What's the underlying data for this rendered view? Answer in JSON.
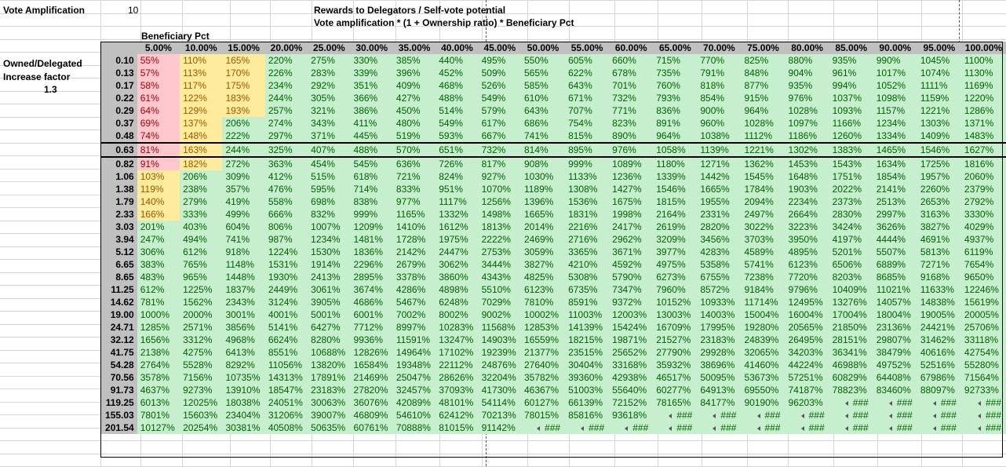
{
  "header": {
    "vote_amp_label": "Vote Amplification",
    "vote_amp_value": "10",
    "title_line1": "Rewards to Delegators / Self-vote potential",
    "title_line2": "Vote amplification * (1 + Ownership ratio) * Beneficiary Pct",
    "beneficiary_label": "Beneficiary Pct",
    "owned_label": "Owned/Delegated",
    "increase_label": "Increase factor",
    "increase_value": "1.3"
  },
  "table": {
    "columns": [
      "5.00%",
      "10.00%",
      "15.00%",
      "20.00%",
      "25.00%",
      "30.00%",
      "35.00%",
      "40.00%",
      "45.00%",
      "50.00%",
      "55.00%",
      "60.00%",
      "65.00%",
      "70.00%",
      "75.00%",
      "80.00%",
      "85.00%",
      "90.00%",
      "95.00%",
      "100.00%"
    ],
    "selected_row": 7,
    "rows": [
      {
        "label": "0.10",
        "cells": [
          "55%",
          "110%",
          "165%",
          "220%",
          "275%",
          "330%",
          "385%",
          "440%",
          "495%",
          "550%",
          "605%",
          "660%",
          "715%",
          "770%",
          "825%",
          "880%",
          "935%",
          "990%",
          "1045%",
          "1100%"
        ]
      },
      {
        "label": "0.13",
        "cells": [
          "57%",
          "113%",
          "170%",
          "226%",
          "283%",
          "339%",
          "396%",
          "452%",
          "509%",
          "565%",
          "622%",
          "678%",
          "735%",
          "791%",
          "848%",
          "904%",
          "961%",
          "1017%",
          "1074%",
          "1130%"
        ]
      },
      {
        "label": "0.17",
        "cells": [
          "58%",
          "117%",
          "175%",
          "234%",
          "292%",
          "351%",
          "409%",
          "468%",
          "526%",
          "585%",
          "643%",
          "701%",
          "760%",
          "818%",
          "877%",
          "935%",
          "994%",
          "1052%",
          "1111%",
          "1169%"
        ]
      },
      {
        "label": "0.22",
        "cells": [
          "61%",
          "122%",
          "183%",
          "244%",
          "305%",
          "366%",
          "427%",
          "488%",
          "549%",
          "610%",
          "671%",
          "732%",
          "793%",
          "854%",
          "915%",
          "976%",
          "1037%",
          "1098%",
          "1159%",
          "1220%"
        ]
      },
      {
        "label": "0.29",
        "cells": [
          "64%",
          "129%",
          "193%",
          "257%",
          "321%",
          "386%",
          "450%",
          "514%",
          "579%",
          "643%",
          "707%",
          "771%",
          "836%",
          "900%",
          "964%",
          "1028%",
          "1093%",
          "1157%",
          "1221%",
          "1286%"
        ]
      },
      {
        "label": "0.37",
        "cells": [
          "69%",
          "137%",
          "206%",
          "274%",
          "343%",
          "411%",
          "480%",
          "549%",
          "617%",
          "686%",
          "754%",
          "823%",
          "891%",
          "960%",
          "1028%",
          "1097%",
          "1166%",
          "1234%",
          "1303%",
          "1371%"
        ]
      },
      {
        "label": "0.48",
        "cells": [
          "74%",
          "148%",
          "222%",
          "297%",
          "371%",
          "445%",
          "519%",
          "593%",
          "667%",
          "741%",
          "815%",
          "890%",
          "964%",
          "1038%",
          "1112%",
          "1186%",
          "1260%",
          "1334%",
          "1409%",
          "1483%"
        ]
      },
      {
        "label": "0.63",
        "cells": [
          "81%",
          "163%",
          "244%",
          "325%",
          "407%",
          "488%",
          "570%",
          "651%",
          "732%",
          "814%",
          "895%",
          "976%",
          "1058%",
          "1139%",
          "1221%",
          "1302%",
          "1383%",
          "1465%",
          "1546%",
          "1627%"
        ]
      },
      {
        "label": "0.82",
        "cells": [
          "91%",
          "182%",
          "272%",
          "363%",
          "454%",
          "545%",
          "636%",
          "726%",
          "817%",
          "908%",
          "999%",
          "1089%",
          "1180%",
          "1271%",
          "1362%",
          "1453%",
          "1543%",
          "1634%",
          "1725%",
          "1816%"
        ]
      },
      {
        "label": "1.06",
        "cells": [
          "103%",
          "206%",
          "309%",
          "412%",
          "515%",
          "618%",
          "721%",
          "824%",
          "927%",
          "1030%",
          "1133%",
          "1236%",
          "1339%",
          "1442%",
          "1545%",
          "1648%",
          "1751%",
          "1854%",
          "1957%",
          "2060%"
        ]
      },
      {
        "label": "1.38",
        "cells": [
          "119%",
          "238%",
          "357%",
          "476%",
          "595%",
          "714%",
          "833%",
          "951%",
          "1070%",
          "1189%",
          "1308%",
          "1427%",
          "1546%",
          "1665%",
          "1784%",
          "1903%",
          "2022%",
          "2141%",
          "2260%",
          "2379%"
        ]
      },
      {
        "label": "1.79",
        "cells": [
          "140%",
          "279%",
          "419%",
          "558%",
          "698%",
          "838%",
          "977%",
          "1117%",
          "1256%",
          "1396%",
          "1536%",
          "1675%",
          "1815%",
          "1955%",
          "2094%",
          "2234%",
          "2373%",
          "2513%",
          "2653%",
          "2792%"
        ]
      },
      {
        "label": "2.33",
        "cells": [
          "166%",
          "333%",
          "499%",
          "666%",
          "832%",
          "999%",
          "1165%",
          "1332%",
          "1498%",
          "1665%",
          "1831%",
          "1998%",
          "2164%",
          "2331%",
          "2497%",
          "2664%",
          "2830%",
          "2997%",
          "3163%",
          "3330%"
        ]
      },
      {
        "label": "3.03",
        "cells": [
          "201%",
          "403%",
          "604%",
          "806%",
          "1007%",
          "1209%",
          "1410%",
          "1612%",
          "1813%",
          "2014%",
          "2216%",
          "2417%",
          "2619%",
          "2820%",
          "3022%",
          "3223%",
          "3424%",
          "3626%",
          "3827%",
          "4029%"
        ]
      },
      {
        "label": "3.94",
        "cells": [
          "247%",
          "494%",
          "741%",
          "987%",
          "1234%",
          "1481%",
          "1728%",
          "1975%",
          "2222%",
          "2469%",
          "2716%",
          "2962%",
          "3209%",
          "3456%",
          "3703%",
          "3950%",
          "4197%",
          "4444%",
          "4691%",
          "4937%"
        ]
      },
      {
        "label": "5.12",
        "cells": [
          "306%",
          "612%",
          "918%",
          "1224%",
          "1530%",
          "1836%",
          "2142%",
          "2447%",
          "2753%",
          "3059%",
          "3365%",
          "3671%",
          "3977%",
          "4283%",
          "4589%",
          "4895%",
          "5201%",
          "5507%",
          "5813%",
          "6119%"
        ]
      },
      {
        "label": "6.65",
        "cells": [
          "383%",
          "765%",
          "1148%",
          "1531%",
          "1914%",
          "2296%",
          "2679%",
          "3062%",
          "3444%",
          "3827%",
          "4210%",
          "4592%",
          "4975%",
          "5358%",
          "5741%",
          "6123%",
          "6506%",
          "6889%",
          "7271%",
          "7654%"
        ]
      },
      {
        "label": "8.65",
        "cells": [
          "483%",
          "965%",
          "1448%",
          "1930%",
          "2413%",
          "2895%",
          "3378%",
          "3860%",
          "4343%",
          "4825%",
          "5308%",
          "5790%",
          "6273%",
          "6755%",
          "7238%",
          "7720%",
          "8203%",
          "8685%",
          "9168%",
          "9650%"
        ]
      },
      {
        "label": "11.25",
        "cells": [
          "612%",
          "1225%",
          "1837%",
          "2449%",
          "3061%",
          "3674%",
          "4286%",
          "4898%",
          "5510%",
          "6123%",
          "6735%",
          "7347%",
          "7960%",
          "8572%",
          "9184%",
          "9796%",
          "10409%",
          "11021%",
          "11633%",
          "12246%"
        ]
      },
      {
        "label": "14.62",
        "cells": [
          "781%",
          "1562%",
          "2343%",
          "3124%",
          "3905%",
          "4686%",
          "5467%",
          "6248%",
          "7029%",
          "7810%",
          "8591%",
          "9372%",
          "10152%",
          "10933%",
          "11714%",
          "12495%",
          "13276%",
          "14057%",
          "14838%",
          "15619%"
        ]
      },
      {
        "label": "19.00",
        "cells": [
          "1000%",
          "2000%",
          "3001%",
          "4001%",
          "5001%",
          "6001%",
          "7002%",
          "8002%",
          "9002%",
          "10002%",
          "11003%",
          "12003%",
          "13003%",
          "14003%",
          "15004%",
          "16004%",
          "17004%",
          "18004%",
          "19005%",
          "20005%"
        ]
      },
      {
        "label": "24.71",
        "cells": [
          "1285%",
          "2571%",
          "3856%",
          "5141%",
          "6427%",
          "7712%",
          "8997%",
          "10283%",
          "11568%",
          "12853%",
          "14139%",
          "15424%",
          "16709%",
          "17995%",
          "19280%",
          "20565%",
          "21850%",
          "23136%",
          "24421%",
          "25706%"
        ]
      },
      {
        "label": "32.12",
        "cells": [
          "1656%",
          "3312%",
          "4968%",
          "6624%",
          "8280%",
          "9936%",
          "11591%",
          "13247%",
          "14903%",
          "16559%",
          "18215%",
          "19871%",
          "21527%",
          "23183%",
          "24839%",
          "26495%",
          "28151%",
          "29807%",
          "31462%",
          "33118%"
        ]
      },
      {
        "label": "41.75",
        "cells": [
          "2138%",
          "4275%",
          "6413%",
          "8551%",
          "10688%",
          "12826%",
          "14964%",
          "17102%",
          "19239%",
          "21377%",
          "23515%",
          "25652%",
          "27790%",
          "29928%",
          "32065%",
          "34203%",
          "36341%",
          "38479%",
          "40616%",
          "42754%"
        ]
      },
      {
        "label": "54.28",
        "cells": [
          "2764%",
          "5528%",
          "8292%",
          "11056%",
          "13820%",
          "16584%",
          "19348%",
          "22112%",
          "24876%",
          "27640%",
          "30404%",
          "33168%",
          "35932%",
          "38696%",
          "41460%",
          "44224%",
          "46988%",
          "49752%",
          "52516%",
          "55280%"
        ]
      },
      {
        "label": "70.56",
        "cells": [
          "3578%",
          "7156%",
          "10735%",
          "14313%",
          "17891%",
          "21469%",
          "25047%",
          "28626%",
          "32204%",
          "35782%",
          "39360%",
          "42938%",
          "46517%",
          "50095%",
          "53673%",
          "57251%",
          "60829%",
          "64408%",
          "67986%",
          "71564%"
        ]
      },
      {
        "label": "91.73",
        "cells": [
          "4637%",
          "9273%",
          "13910%",
          "18547%",
          "23183%",
          "27820%",
          "32457%",
          "37093%",
          "41730%",
          "46367%",
          "51003%",
          "55640%",
          "60277%",
          "64913%",
          "69550%",
          "74187%",
          "78823%",
          "83460%",
          "88097%",
          "92733%"
        ]
      },
      {
        "label": "119.25",
        "cells": [
          "6013%",
          "12025%",
          "18038%",
          "24051%",
          "30063%",
          "36076%",
          "42089%",
          "48101%",
          "54114%",
          "60127%",
          "66139%",
          "72152%",
          "78165%",
          "84177%",
          "90190%",
          "96203%",
          "###",
          "###",
          "###",
          "###"
        ]
      },
      {
        "label": "155.03",
        "cells": [
          "7801%",
          "15603%",
          "23404%",
          "31206%",
          "39007%",
          "46809%",
          "54610%",
          "62412%",
          "70213%",
          "78015%",
          "85816%",
          "93618%",
          "###",
          "###",
          "###",
          "###",
          "###",
          "###",
          "###",
          "###"
        ]
      },
      {
        "label": "201.54",
        "cells": [
          "10127%",
          "20254%",
          "30381%",
          "40508%",
          "50635%",
          "60761%",
          "70888%",
          "81015%",
          "91142%",
          "###",
          "###",
          "###",
          "###",
          "###",
          "###",
          "###",
          "###",
          "###",
          "###",
          "###"
        ]
      }
    ]
  },
  "colors": {
    "red_fill": "#ffc7ce",
    "red_text": "#9c0006",
    "yellow_fill": "#ffeb9c",
    "yellow_text": "#9c5700",
    "green_fill": "#c6efce",
    "green_text": "#006100",
    "header_fill": "#c0c0c0"
  }
}
